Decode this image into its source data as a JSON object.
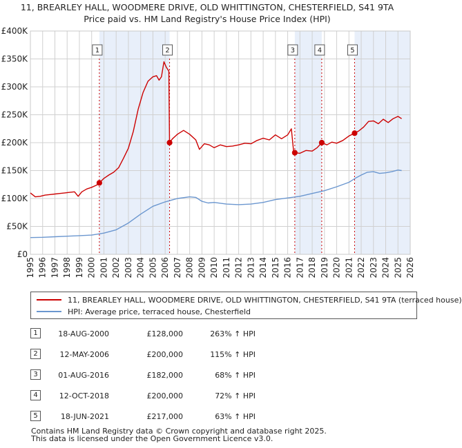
{
  "title_line1": "11, BREARLEY HALL, WOODMERE DRIVE, OLD WHITTINGTON, CHESTERFIELD, S41 9TA",
  "title_line2": "Price paid vs. HM Land Registry's House Price Index (HPI)",
  "chart_data": {
    "type": "line",
    "title": "11, BREARLEY HALL, WOODMERE DRIVE, OLD WHITTINGTON, CHESTERFIELD, S41 9TA — Price paid vs. HM Land Registry's House Price Index (HPI)",
    "xlabel": "",
    "ylabel": "",
    "xlim": [
      1995,
      2026
    ],
    "ylim": [
      0,
      400000
    ],
    "y_ticks": [
      {
        "value": 0,
        "label": "£0"
      },
      {
        "value": 50000,
        "label": "£50K"
      },
      {
        "value": 100000,
        "label": "£100K"
      },
      {
        "value": 150000,
        "label": "£150K"
      },
      {
        "value": 200000,
        "label": "£200K"
      },
      {
        "value": 250000,
        "label": "£250K"
      },
      {
        "value": 300000,
        "label": "£300K"
      },
      {
        "value": 350000,
        "label": "£350K"
      },
      {
        "value": 400000,
        "label": "£400K"
      }
    ],
    "x_ticks": [
      "1995",
      "1996",
      "1997",
      "1998",
      "1999",
      "2000",
      "2001",
      "2002",
      "2003",
      "2004",
      "2005",
      "2006",
      "2007",
      "2008",
      "2009",
      "2010",
      "2011",
      "2012",
      "2013",
      "2014",
      "2015",
      "2016",
      "2017",
      "2018",
      "2019",
      "2020",
      "2021",
      "2022",
      "2023",
      "2024",
      "2025",
      "2026"
    ],
    "grid": true,
    "colors": {
      "property": "#cc0000",
      "hpi": "#6a96cf",
      "shade": "#e8effa",
      "grid": "#d0d0d0",
      "marker_line": "#cc0000"
    },
    "shaded_periods": [
      [
        2000.63,
        2006.36
      ],
      [
        2016.58,
        2018.78
      ],
      [
        2021.46,
        2026
      ]
    ],
    "series": [
      {
        "name": "11, BREARLEY HALL, WOODMERE DRIVE, OLD WHITTINGTON, CHESTERFIELD, S41 9TA (terraced house)",
        "color": "#cc0000",
        "x": [
          1995.0,
          1995.4,
          1995.8,
          1996.2,
          1996.6,
          1997.0,
          1997.4,
          1997.8,
          1998.2,
          1998.6,
          1998.9,
          1999.2,
          1999.6,
          2000.0,
          2000.4,
          2000.63,
          2001.0,
          2001.4,
          2001.8,
          2002.2,
          2002.6,
          2003.0,
          2003.4,
          2003.8,
          2004.2,
          2004.6,
          2005.0,
          2005.3,
          2005.5,
          2005.7,
          2005.9,
          2006.1,
          2006.3,
          2006.36,
          2006.6,
          2007.0,
          2007.5,
          2008.0,
          2008.5,
          2008.8,
          2009.2,
          2009.6,
          2010.0,
          2010.5,
          2011.0,
          2011.5,
          2012.0,
          2012.5,
          2013.0,
          2013.5,
          2014.0,
          2014.5,
          2015.0,
          2015.5,
          2016.0,
          2016.3,
          2016.5,
          2016.58,
          2017.0,
          2017.5,
          2018.0,
          2018.4,
          2018.78,
          2019.2,
          2019.6,
          2020.0,
          2020.5,
          2021.0,
          2021.46,
          2021.8,
          2022.2,
          2022.6,
          2023.0,
          2023.4,
          2023.8,
          2024.2,
          2024.6,
          2025.0,
          2025.3
        ],
        "values": [
          110000,
          103000,
          104000,
          106000,
          107000,
          108000,
          109000,
          110000,
          111000,
          112000,
          104000,
          112000,
          117000,
          120000,
          124000,
          128000,
          136000,
          142000,
          147000,
          155000,
          172000,
          190000,
          220000,
          260000,
          290000,
          310000,
          318000,
          320000,
          312000,
          318000,
          345000,
          335000,
          328000,
          200000,
          207000,
          215000,
          222000,
          215000,
          205000,
          188000,
          198000,
          196000,
          191000,
          196000,
          193000,
          194000,
          196000,
          199000,
          198000,
          204000,
          208000,
          205000,
          214000,
          207000,
          214000,
          225000,
          180000,
          182000,
          181000,
          186000,
          185000,
          191000,
          200000,
          196000,
          201000,
          199000,
          204000,
          212000,
          217000,
          221000,
          228000,
          238000,
          239000,
          234000,
          242000,
          236000,
          243000,
          247000,
          243000
        ]
      },
      {
        "name": "HPI: Average price, terraced house, Chesterfield",
        "color": "#6a96cf",
        "x": [
          1995.0,
          1996.0,
          1997.0,
          1998.0,
          1999.0,
          2000.0,
          2001.0,
          2002.0,
          2003.0,
          2004.0,
          2005.0,
          2006.0,
          2007.0,
          2008.0,
          2008.5,
          2009.0,
          2009.5,
          2010.0,
          2011.0,
          2012.0,
          2013.0,
          2014.0,
          2015.0,
          2016.0,
          2017.0,
          2018.0,
          2019.0,
          2020.0,
          2021.0,
          2021.5,
          2022.0,
          2022.5,
          2023.0,
          2023.5,
          2024.0,
          2024.5,
          2025.0,
          2025.3
        ],
        "values": [
          30000,
          30500,
          31500,
          32500,
          33500,
          34500,
          38000,
          44000,
          56000,
          72000,
          86000,
          94000,
          100000,
          103000,
          102000,
          95000,
          92000,
          93000,
          90000,
          89000,
          90000,
          93000,
          98000,
          101000,
          104000,
          109000,
          114000,
          121000,
          129000,
          136000,
          142000,
          147000,
          148000,
          145000,
          146000,
          148000,
          151000,
          150000
        ]
      }
    ],
    "sale_markers": [
      {
        "num": "1",
        "x": 2000.63,
        "value": 128000
      },
      {
        "num": "2",
        "x": 2006.36,
        "value": 200000
      },
      {
        "num": "3",
        "x": 2016.58,
        "value": 182000
      },
      {
        "num": "4",
        "x": 2018.78,
        "value": 200000
      },
      {
        "num": "5",
        "x": 2021.46,
        "value": 217000
      }
    ]
  },
  "legend": {
    "property_label": "11, BREARLEY HALL, WOODMERE DRIVE, OLD WHITTINGTON, CHESTERFIELD, S41 9TA (terraced house)",
    "hpi_label": "HPI: Average price, terraced house, Chesterfield"
  },
  "sales": [
    {
      "num": "1",
      "date": "18-AUG-2000",
      "price": "£128,000",
      "hpi": "263% ↑ HPI"
    },
    {
      "num": "2",
      "date": "12-MAY-2006",
      "price": "£200,000",
      "hpi": "115% ↑ HPI"
    },
    {
      "num": "3",
      "date": "01-AUG-2016",
      "price": "£182,000",
      "hpi": "68% ↑ HPI"
    },
    {
      "num": "4",
      "date": "12-OCT-2018",
      "price": "£200,000",
      "hpi": "72% ↑ HPI"
    },
    {
      "num": "5",
      "date": "18-JUN-2021",
      "price": "£217,000",
      "hpi": "63% ↑ HPI"
    }
  ],
  "footer": {
    "line1": "Contains HM Land Registry data © Crown copyright and database right 2025.",
    "line2": "This data is licensed under the Open Government Licence v3.0."
  }
}
